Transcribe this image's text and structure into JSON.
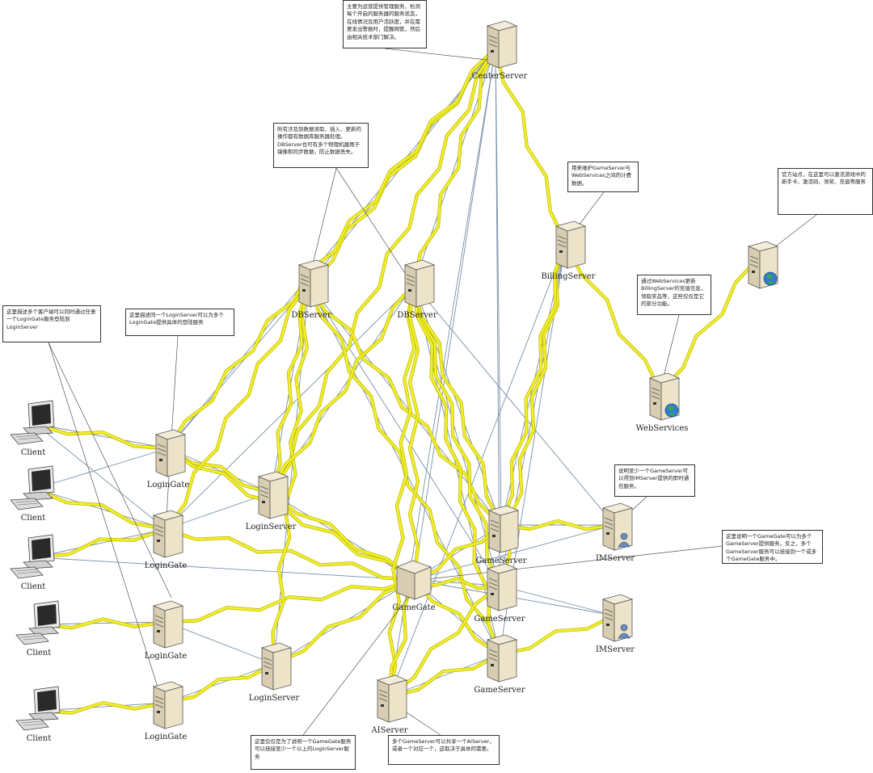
{
  "labels": {
    "center_server": "CenterServer",
    "db_server_1": "DBServer",
    "db_server_2": "DBServer",
    "billing_server": "BillingServer",
    "web_services": "WebServices",
    "client_1": "Client",
    "client_2": "Client",
    "client_3": "Client",
    "client_4": "Client",
    "client_5": "Client",
    "login_gate_1": "LoginGate",
    "login_gate_2": "LoginGate",
    "login_gate_3": "LoginGate",
    "login_gate_4": "LoginGate",
    "login_server_1": "LoginServer",
    "login_server_2": "LoginServer",
    "game_gate": "GameGate",
    "game_server_1": "GameServer",
    "game_server_2": "GameServer",
    "game_server_3": "GameServer",
    "im_server_1": "IMServer",
    "im_server_2": "IMServer",
    "ai_server": "AIServer"
  },
  "notes": {
    "center": "主要为运营提供管理服务，检测每个开启的服务器的服务状态，在线情况及用户活跃度，并在需要发出警报时，提醒网管，然后由相关技术部门解决。",
    "db": "所有涉及到数据读取、插入、更新的操作都有数据库服务器处理。DBServer也可有多个物理机器用于镜像和同步数据，防止数据丢失。",
    "billing": "用来维护GameServer与WebServices之间的计费数据。",
    "website": "官方站点，在这里可以激活游戏中的新手卡、激活码、领奖、充值等服务",
    "webservices": "通过WebServices更新BillingServer的充值信息，领取奖品等，这些仅仅是它的部分功能。",
    "client": "这里描述多个客户端可以同时通过任意一个LoginGate服务登陆到LoginServer",
    "logingate": "这里描述同一个LoginServer可以为多个LoginGate提供具体的登陆服务",
    "im": "说明至少一个GameServer可以得到IMServer提供的即时通信服务。",
    "gamegate": "这里说明一个GameGate可以为多个GameServer提供服务，反之，多个GameServer服务可以挂接到一个或多个GameGate服务中。",
    "loginserver": "这里仅仅是为了说明一个GameGate服务可以挂接至少一个以上的LoginServer服务",
    "ai": "多个GameServer可以共享一个AIServer，或者一个对应一个，这取决于具体的需要。"
  },
  "colors": {
    "link_yellow": "#f2ef2a",
    "link_yellow_edge": "#b8b400",
    "link_line": "#7890a8",
    "callout": "#555555"
  },
  "icons": {
    "server": "server-tower-icon",
    "client": "desktop-computer-icon",
    "globe": "globe-icon",
    "user": "user-icon"
  }
}
